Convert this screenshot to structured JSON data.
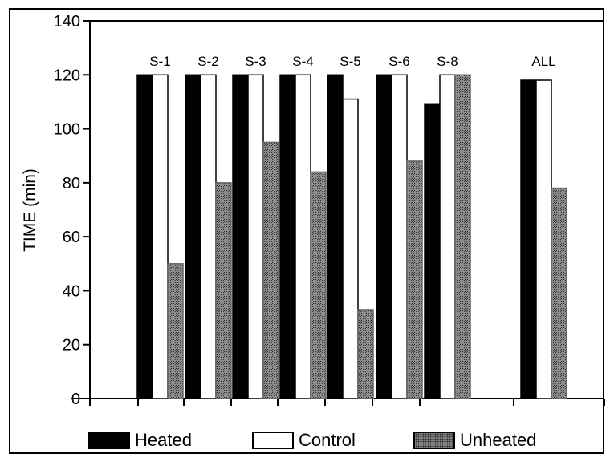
{
  "chart_data": {
    "type": "bar",
    "ylabel": "TIME (min)",
    "xlabel": "",
    "title": "",
    "ylim": [
      0,
      140
    ],
    "yticks": [
      0,
      20,
      40,
      60,
      80,
      100,
      120,
      140
    ],
    "categories": [
      "S-1",
      "S-2",
      "S-3",
      "S-4",
      "S-5",
      "S-6",
      "S-8",
      "ALL"
    ],
    "series": [
      {
        "name": "Heated",
        "values": [
          120,
          120,
          120,
          120,
          120,
          120,
          109,
          118
        ]
      },
      {
        "name": "Control",
        "values": [
          120,
          120,
          120,
          120,
          111,
          120,
          120,
          118
        ]
      },
      {
        "name": "Unheated",
        "values": [
          50,
          80,
          95,
          84,
          33,
          88,
          120,
          78
        ]
      }
    ],
    "grid": false,
    "legend_position": "bottom"
  },
  "legend": {
    "heated": "Heated",
    "control": "Control",
    "unheated": "Unheated"
  },
  "colors": {
    "heated": "#000000",
    "control": "#ffffff",
    "unheated": "#8c8c8c"
  }
}
